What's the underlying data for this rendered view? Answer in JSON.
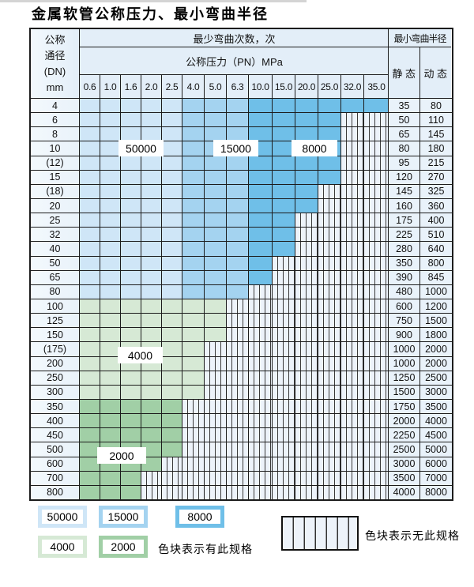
{
  "title": "金属软管公称压力、最小弯曲半径",
  "header": {
    "dn_lines": [
      "公称",
      "通径",
      "(DN)",
      "mm"
    ],
    "bend_times_label": "最少弯曲次数，次",
    "pressure_label": "公称压力（PN）MPa",
    "pressure_columns": [
      "0.6",
      "1.0",
      "1.6",
      "2.0",
      "2.5",
      "4.0",
      "5.0",
      "6.3",
      "10.0",
      "15.0",
      "20.0",
      "25.0",
      "32.0",
      "35.0"
    ],
    "radius_label": "最小弯曲半径",
    "static_label": "静 态",
    "dynamic_label": "动 态"
  },
  "colors": {
    "blue_50000": "#cfe6f7",
    "blue_15000": "#a4d3f0",
    "blue_8000": "#6fbfe8",
    "green_4000": "#d6e9d5",
    "green_2000": "#a1cfa6",
    "cell_bg": "#e9f2fa",
    "header_bg": "#e3eef8",
    "hatch_bg": "#edf3fa",
    "hatch_line": "#3a3a3a",
    "grid": "#1c1c1c"
  },
  "overlay_labels": [
    "50000",
    "15000",
    "8000",
    "4000",
    "2000"
  ],
  "rows": [
    {
      "dn": "4",
      "group": "blue",
      "through": "35.0",
      "static": "35",
      "dynamic": "80"
    },
    {
      "dn": "6",
      "group": "blue",
      "through": "25.0",
      "static": "50",
      "dynamic": "110"
    },
    {
      "dn": "8",
      "group": "blue",
      "through": "25.0",
      "static": "65",
      "dynamic": "145"
    },
    {
      "dn": "10",
      "group": "blue",
      "through": "25.0",
      "static": "80",
      "dynamic": "180"
    },
    {
      "dn": "(12)",
      "group": "blue",
      "through": "25.0",
      "static": "95",
      "dynamic": "215"
    },
    {
      "dn": "15",
      "group": "blue",
      "through": "25.0",
      "static": "120",
      "dynamic": "270"
    },
    {
      "dn": "(18)",
      "group": "blue",
      "through": "20.0",
      "static": "145",
      "dynamic": "325"
    },
    {
      "dn": "20",
      "group": "blue",
      "through": "20.0",
      "static": "160",
      "dynamic": "360"
    },
    {
      "dn": "25",
      "group": "blue",
      "through": "15.0",
      "static": "175",
      "dynamic": "400"
    },
    {
      "dn": "32",
      "group": "blue",
      "through": "15.0",
      "static": "225",
      "dynamic": "510"
    },
    {
      "dn": "40",
      "group": "blue",
      "through": "15.0",
      "static": "280",
      "dynamic": "640"
    },
    {
      "dn": "50",
      "group": "blue",
      "through": "10.0",
      "static": "350",
      "dynamic": "800"
    },
    {
      "dn": "65",
      "group": "blue",
      "through": "10.0",
      "static": "390",
      "dynamic": "845"
    },
    {
      "dn": "80",
      "group": "blue",
      "through": "6.3",
      "static": "480",
      "dynamic": "1000"
    },
    {
      "dn": "100",
      "group": "g4000",
      "through": "5.0",
      "static": "600",
      "dynamic": "1200"
    },
    {
      "dn": "125",
      "group": "g4000",
      "through": "5.0",
      "static": "750",
      "dynamic": "1500"
    },
    {
      "dn": "150",
      "group": "g4000",
      "through": "5.0",
      "static": "900",
      "dynamic": "1800"
    },
    {
      "dn": "(175)",
      "group": "g4000",
      "through": "4.0",
      "static": "1000",
      "dynamic": "2000"
    },
    {
      "dn": "200",
      "group": "g4000",
      "through": "4.0",
      "static": "1000",
      "dynamic": "2000"
    },
    {
      "dn": "250",
      "group": "g4000",
      "through": "4.0",
      "static": "1250",
      "dynamic": "2500"
    },
    {
      "dn": "300",
      "group": "g4000",
      "through": "4.0",
      "static": "1500",
      "dynamic": "3000"
    },
    {
      "dn": "350",
      "group": "g2000",
      "through": "2.5",
      "static": "1750",
      "dynamic": "3500"
    },
    {
      "dn": "400",
      "group": "g2000",
      "through": "2.5",
      "static": "2000",
      "dynamic": "4000"
    },
    {
      "dn": "450",
      "group": "g2000",
      "through": "2.5",
      "static": "2250",
      "dynamic": "4500"
    },
    {
      "dn": "500",
      "group": "g2000",
      "through": "2.5",
      "static": "2500",
      "dynamic": "5000"
    },
    {
      "dn": "600",
      "group": "g2000",
      "through": "2.0",
      "static": "3000",
      "dynamic": "6000"
    },
    {
      "dn": "700",
      "group": "g2000",
      "through": "1.6",
      "static": "3500",
      "dynamic": "7000"
    },
    {
      "dn": "800",
      "group": "g2000",
      "through": "1.6",
      "static": "4000",
      "dynamic": "8000"
    }
  ],
  "legend": {
    "items": [
      {
        "label": "50000",
        "band": "b1"
      },
      {
        "label": "15000",
        "band": "b2"
      },
      {
        "label": "8000",
        "band": "b3"
      },
      {
        "label": "4000",
        "band": "g1"
      },
      {
        "label": "2000",
        "band": "g2"
      }
    ],
    "has_spec_text": "色块表示有此规格",
    "no_spec_text": "色块表示无此规格"
  }
}
